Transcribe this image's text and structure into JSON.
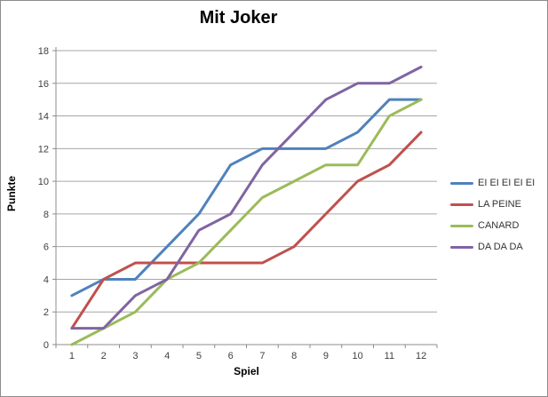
{
  "chart_data": {
    "type": "line",
    "title": "Mit Joker",
    "xlabel": "Spiel",
    "ylabel": "Punkte",
    "categories": [
      "1",
      "2",
      "3",
      "4",
      "5",
      "6",
      "7",
      "8",
      "9",
      "10",
      "11",
      "12"
    ],
    "y_ticks": [
      0,
      2,
      4,
      6,
      8,
      10,
      12,
      14,
      16,
      18
    ],
    "ylim": [
      0,
      18
    ],
    "grid": "horizontal",
    "legend_position": "right",
    "series": [
      {
        "name": "EI EI EI EI EI",
        "color": "#4F81BD",
        "values": [
          3,
          4,
          4,
          6,
          8,
          11,
          12,
          12,
          12,
          13,
          15,
          15
        ]
      },
      {
        "name": "LA PEINE",
        "color": "#C0504D",
        "values": [
          1,
          4,
          5,
          5,
          5,
          5,
          5,
          6,
          8,
          10,
          11,
          13
        ]
      },
      {
        "name": "CANARD",
        "color": "#9BBB59",
        "values": [
          0,
          1,
          2,
          4,
          5,
          7,
          9,
          10,
          11,
          11,
          14,
          15
        ]
      },
      {
        "name": "DA DA DA",
        "color": "#8064A2",
        "values": [
          1,
          1,
          3,
          4,
          7,
          8,
          11,
          13,
          15,
          16,
          16,
          17
        ]
      }
    ],
    "style": {
      "gridline_color": "#A6A6A6",
      "axis_color": "#8C8C8C",
      "tick_label_color": "#3F3F3F",
      "background": "#FFFFFF",
      "line_width": 3
    }
  }
}
